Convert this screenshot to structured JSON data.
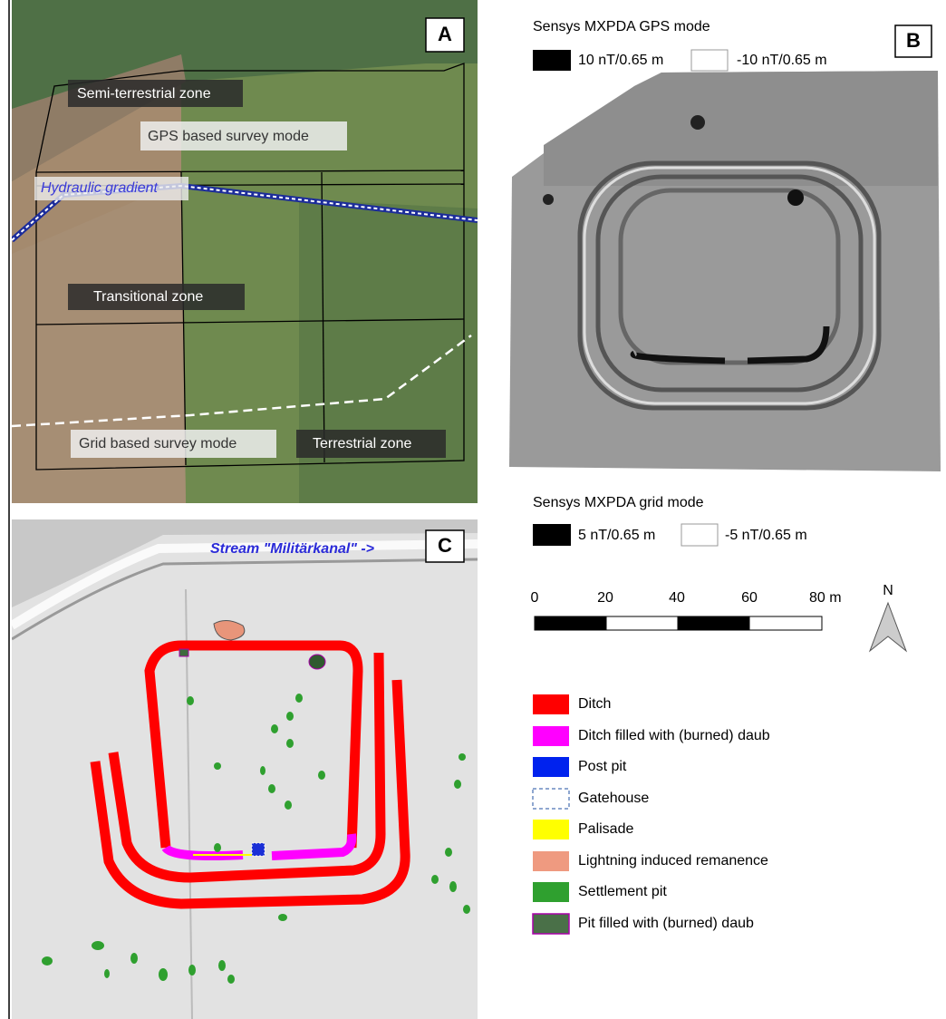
{
  "panel_a": {
    "letter": "A",
    "semi_terrestrial": "Semi-terrestrial zone",
    "gps_mode": "GPS based survey mode",
    "hydraulic_gradient": "Hydraulic gradient",
    "transitional": "Transitional zone",
    "grid_mode": "Grid based survey mode",
    "terrestrial": "Terrestrial zone"
  },
  "panel_b": {
    "letter": "B",
    "gps_title": "Sensys MXPDA GPS mode",
    "gps_max": "10 nT/0.65 m",
    "gps_min": "-10 nT/0.65 m",
    "grid_title": "Sensys MXPDA grid mode",
    "grid_max": "5 nT/0.65 m",
    "grid_min": "-5 nT/0.65 m",
    "scale_bar": [
      "0",
      "20",
      "40",
      "60",
      "80 m"
    ],
    "north": "N"
  },
  "panel_c": {
    "letter": "C",
    "stream": "Stream \"Militärkanal\" ->"
  },
  "legend": [
    "Ditch",
    "Ditch filled with (burned) daub",
    "Post pit",
    "Gatehouse",
    "Palisade",
    "Lightning induced remanence",
    "Settlement pit",
    "Pit filled with (burned) daub"
  ]
}
